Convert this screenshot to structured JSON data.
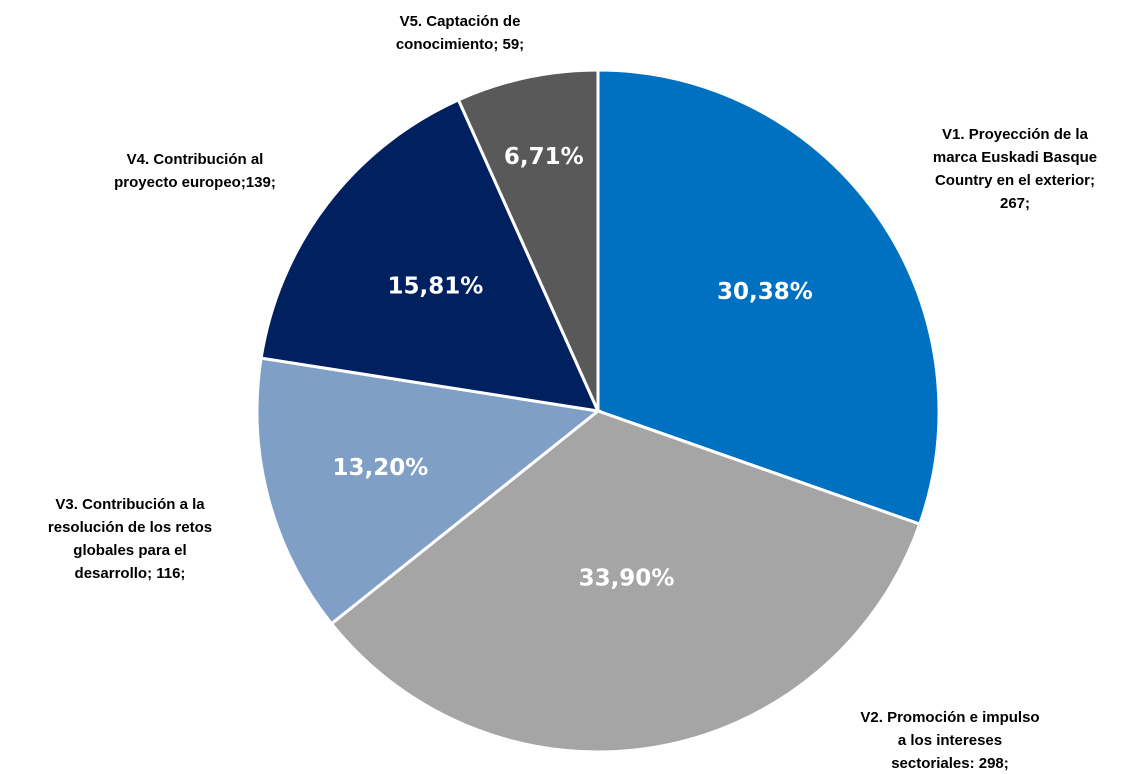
{
  "chart_data": {
    "type": "pie",
    "categories": [
      [
        "V1. Proyección de la",
        "marca Euskadi Basque",
        "Country en el exterior;",
        "267;"
      ],
      [
        "V2. Promoción e impulso",
        "a los intereses",
        "sectoriales: 298;"
      ],
      [
        "V3. Contribución a la",
        "resolución de los retos",
        "globales para el",
        "desarrollo; 116;"
      ],
      [
        "V4. Contribución al",
        "proyecto europeo;139;"
      ],
      [
        "V5. Captación de",
        "conocimiento; 59;"
      ]
    ],
    "values": [
      30.38,
      33.9,
      13.2,
      15.81,
      6.71
    ],
    "value_labels": [
      "30,38%",
      "33,90%",
      "13,20%",
      "15,81%",
      "6,71%"
    ],
    "colors": [
      "#0070c0",
      "#a5a5a5",
      "#7f9fc6",
      "#002060",
      "#595959"
    ]
  }
}
